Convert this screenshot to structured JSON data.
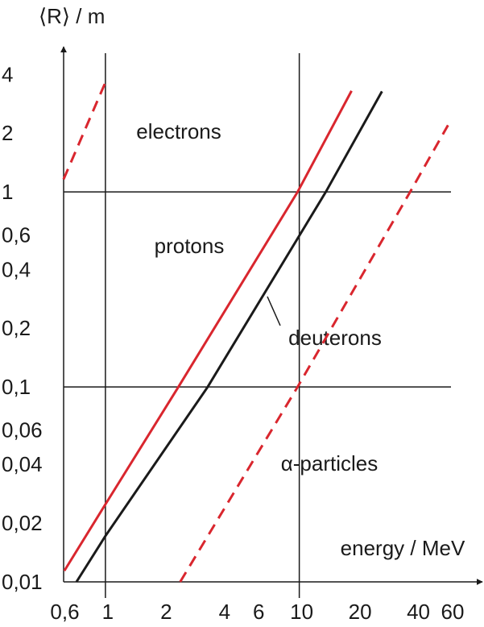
{
  "chart_data": {
    "type": "line",
    "y_label": "⟨R⟩ / m",
    "x_label": "energy / MeV",
    "log_x": true,
    "log_y": true,
    "xlim": [
      0.6,
      88
    ],
    "ylim": [
      0.01,
      5.4
    ],
    "xticks": [
      {
        "value": 0.6,
        "label": "0,6"
      },
      1,
      2,
      4,
      6,
      10,
      20,
      40,
      60
    ],
    "yticks": [
      {
        "value": 0.01,
        "label": "0,01"
      },
      {
        "value": 0.02,
        "label": "0,02"
      },
      {
        "value": 0.04,
        "label": "0,04"
      },
      {
        "value": 0.06,
        "label": "0,06"
      },
      {
        "value": 0.1,
        "label": "0,1"
      },
      {
        "value": 0.2,
        "label": "0,2"
      },
      {
        "value": 0.4,
        "label": "0,4"
      },
      {
        "value": 0.6,
        "label": "0,6"
      },
      1,
      2,
      4
    ],
    "grid_lines": {
      "x": [
        1,
        10
      ],
      "y": [
        0.1,
        1
      ]
    },
    "series": [
      {
        "name": "electrons",
        "color": "#d9262e",
        "dashed": true,
        "x": [
          0.608,
          1.02
        ],
        "values": [
          1.16,
          3.82
        ]
      },
      {
        "name": "protons",
        "color": "#d9262e",
        "dashed": false,
        "x": [
          0.614,
          1,
          2.38,
          9.8,
          18.6
        ],
        "values": [
          0.0114,
          0.025,
          0.1,
          1,
          3.3
        ]
      },
      {
        "name": "deuterons",
        "color": "#1a1a1a",
        "dashed": false,
        "x": [
          0.709,
          1,
          3.37,
          13.7,
          26.7
        ],
        "values": [
          0.01,
          0.0172,
          0.1,
          1,
          3.28
        ]
      },
      {
        "name": "α-particles",
        "color": "#d9262e",
        "dashed": true,
        "x": [
          2.43,
          9.8,
          37.3,
          58.5
        ],
        "values": [
          0.01,
          0.1,
          1,
          2.2
        ]
      }
    ]
  }
}
